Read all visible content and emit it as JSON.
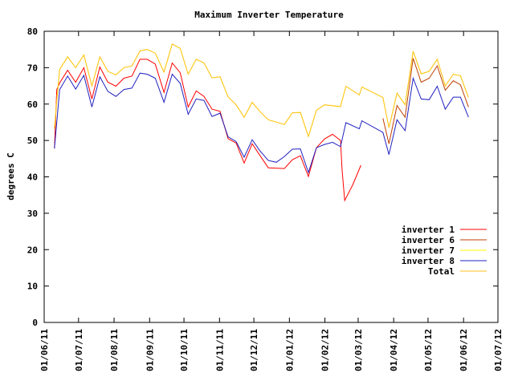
{
  "chart_data": {
    "type": "line",
    "title": "Maximum Inverter Temperature",
    "xlabel": "",
    "ylabel": "degrees C",
    "x_units": "days since 01/06/11",
    "xlim": [
      0,
      396
    ],
    "ylim": [
      0,
      80
    ],
    "yticks": [
      0,
      10,
      20,
      30,
      40,
      50,
      60,
      70,
      80
    ],
    "xticks": [
      {
        "day": 0,
        "label": "01/06/11"
      },
      {
        "day": 30,
        "label": "01/07/11"
      },
      {
        "day": 61,
        "label": "01/08/11"
      },
      {
        "day": 92,
        "label": "01/09/11"
      },
      {
        "day": 122,
        "label": "01/10/11"
      },
      {
        "day": 153,
        "label": "01/11/11"
      },
      {
        "day": 183,
        "label": "01/12/11"
      },
      {
        "day": 214,
        "label": "01/01/12"
      },
      {
        "day": 245,
        "label": "01/02/12"
      },
      {
        "day": 274,
        "label": "01/03/12"
      },
      {
        "day": 305,
        "label": "01/04/12"
      },
      {
        "day": 335,
        "label": "01/05/12"
      },
      {
        "day": 366,
        "label": "01/06/12"
      },
      {
        "day": 396,
        "label": "01/07/12"
      }
    ],
    "legend_position": "bottom-right",
    "series": [
      {
        "name": "inverter 1",
        "color": "#ff0000",
        "segments": [
          [
            [
              9,
              47.8
            ],
            [
              11,
              64
            ],
            [
              13.5,
              65.8
            ],
            [
              20.5,
              69.3
            ],
            [
              27.5,
              66
            ],
            [
              34.6,
              70
            ],
            [
              41.6,
              61.4
            ],
            [
              48.6,
              70.2
            ],
            [
              55.6,
              66
            ],
            [
              62.6,
              64.9
            ],
            [
              69.6,
              67.1
            ],
            [
              76.6,
              67.7
            ],
            [
              83.6,
              72.3
            ],
            [
              89.9,
              72.3
            ],
            [
              96.9,
              71
            ],
            [
              104.6,
              63.2
            ],
            [
              111.7,
              71.3
            ],
            [
              118.7,
              68.6
            ],
            [
              125.7,
              59.2
            ],
            [
              132.7,
              63.6
            ],
            [
              139.5,
              62.1
            ],
            [
              146.5,
              58.6
            ],
            [
              153.5,
              58
            ],
            [
              160.5,
              50.5
            ],
            [
              167.5,
              49.3
            ],
            [
              174.5,
              43.8
            ],
            [
              181.5,
              49.1
            ],
            [
              188.5,
              45.8
            ],
            [
              195.6,
              42.5
            ],
            [
              209.6,
              42.3
            ],
            [
              216.6,
              44.7
            ],
            [
              223.6,
              45.8
            ],
            [
              230.6,
              40.1
            ],
            [
              237.6,
              48
            ],
            [
              244.6,
              50.4
            ],
            [
              251.6,
              51.7
            ],
            [
              258.6,
              50
            ],
            [
              260,
              41.7
            ],
            [
              262.3,
              33.5
            ],
            [
              269.4,
              37.9
            ],
            [
              276.4,
              43.2
            ]
          ]
        ]
      },
      {
        "name": "inverter 6",
        "color": "#c04000",
        "segments": [
          [
            [
              295.6,
              56.1
            ],
            [
              300.9,
              49.1
            ],
            [
              307.9,
              59.6
            ],
            [
              315,
              56.4
            ],
            [
              322,
              72.6
            ],
            [
              329,
              66
            ],
            [
              336,
              67.1
            ],
            [
              343,
              70.5
            ],
            [
              350,
              63.8
            ],
            [
              357,
              66.4
            ],
            [
              363.3,
              65.3
            ],
            [
              370.3,
              59.2
            ]
          ]
        ]
      },
      {
        "name": "inverter 7",
        "color": "#ffff00",
        "segments": [
          [
            [
              9,
              53.3
            ],
            [
              11,
              61
            ],
            [
              13.5,
              69.5
            ],
            [
              20.5,
              73
            ],
            [
              27.5,
              70
            ],
            [
              34.6,
              73.5
            ],
            [
              41.6,
              65
            ],
            [
              48.6,
              73
            ],
            [
              55.6,
              69
            ],
            [
              62.6,
              68
            ],
            [
              69.6,
              70
            ],
            [
              76.6,
              70.5
            ],
            [
              83.6,
              74.6
            ],
            [
              89.9,
              75
            ],
            [
              96.9,
              74
            ],
            [
              104.6,
              68.8
            ],
            [
              111.7,
              76.5
            ],
            [
              118.7,
              75.3
            ],
            [
              125.7,
              68.2
            ],
            [
              132.7,
              72.3
            ],
            [
              139.5,
              71.3
            ],
            [
              146.5,
              67.2
            ],
            [
              153.5,
              67.5
            ],
            [
              160.5,
              62
            ],
            [
              167.5,
              59.8
            ],
            [
              174.5,
              56.4
            ],
            [
              181.5,
              60.5
            ],
            [
              188.5,
              57.9
            ],
            [
              195.6,
              55.7
            ],
            [
              209.6,
              54.4
            ],
            [
              216.6,
              57.6
            ],
            [
              223.6,
              57.7
            ],
            [
              230.6,
              51.1
            ],
            [
              237.6,
              58.3
            ],
            [
              244.6,
              59.8
            ],
            [
              258.6,
              59.3
            ],
            [
              263.3,
              64.9
            ],
            [
              275,
              62.5
            ],
            [
              277.3,
              64.7
            ],
            [
              295.6,
              61.8
            ],
            [
              300.9,
              53.5
            ],
            [
              307.9,
              63
            ],
            [
              315,
              59.8
            ],
            [
              322,
              74.5
            ],
            [
              329,
              68.3
            ],
            [
              336,
              69
            ],
            [
              343,
              72.3
            ],
            [
              350,
              65
            ],
            [
              357,
              68.2
            ],
            [
              363.3,
              67.8
            ],
            [
              370.3,
              61.8
            ]
          ]
        ]
      },
      {
        "name": "inverter 8",
        "color": "#2020c0",
        "segments": [
          [
            [
              9,
              47.8
            ],
            [
              13.5,
              64
            ],
            [
              20.5,
              67.7
            ],
            [
              27.5,
              64.1
            ],
            [
              34.6,
              67.9
            ],
            [
              41.6,
              59.2
            ],
            [
              48.6,
              67.5
            ],
            [
              55.6,
              63.5
            ],
            [
              62.6,
              62.1
            ],
            [
              69.6,
              64
            ],
            [
              76.6,
              64.4
            ],
            [
              83.6,
              68.5
            ],
            [
              89.9,
              68.2
            ],
            [
              96.9,
              67.1
            ],
            [
              104.6,
              60.5
            ],
            [
              111.7,
              68.2
            ],
            [
              118.7,
              65.7
            ],
            [
              125.7,
              57.2
            ],
            [
              132.7,
              61.4
            ],
            [
              139.5,
              61
            ],
            [
              146.5,
              56.6
            ],
            [
              153.5,
              57.5
            ],
            [
              160.5,
              51
            ],
            [
              167.5,
              49.7
            ],
            [
              174.5,
              45.4
            ],
            [
              181.5,
              50.2
            ],
            [
              188.5,
              47.1
            ],
            [
              195.6,
              44.5
            ],
            [
              202.6,
              44
            ],
            [
              209.6,
              45.6
            ],
            [
              216.6,
              47.6
            ],
            [
              223.6,
              47.7
            ],
            [
              230.6,
              41.2
            ],
            [
              237.6,
              48
            ],
            [
              244.6,
              48.9
            ],
            [
              251.6,
              49.5
            ],
            [
              258.6,
              48.3
            ],
            [
              263.3,
              54.9
            ],
            [
              275,
              53.2
            ],
            [
              277.3,
              55.4
            ],
            [
              295.6,
              52.2
            ],
            [
              300.9,
              46.1
            ],
            [
              307.9,
              55.7
            ],
            [
              315,
              52.7
            ],
            [
              322,
              67.1
            ],
            [
              329,
              61.4
            ],
            [
              336,
              61.2
            ],
            [
              343,
              64.9
            ],
            [
              350,
              58.6
            ],
            [
              357,
              61.9
            ],
            [
              363.3,
              61.9
            ],
            [
              370.3,
              56.4
            ]
          ]
        ]
      },
      {
        "name": "Total",
        "color": "#ffc020",
        "segments": [
          [
            [
              9,
              53.3
            ],
            [
              11,
              61
            ],
            [
              13.5,
              69.5
            ],
            [
              20.5,
              73
            ],
            [
              27.5,
              70
            ],
            [
              34.6,
              73.5
            ],
            [
              41.6,
              65
            ],
            [
              48.6,
              73
            ],
            [
              55.6,
              69
            ],
            [
              62.6,
              68
            ],
            [
              69.6,
              70
            ],
            [
              76.6,
              70.5
            ],
            [
              83.6,
              74.6
            ],
            [
              89.9,
              75
            ],
            [
              96.9,
              74
            ],
            [
              104.6,
              68.8
            ],
            [
              111.7,
              76.5
            ],
            [
              118.7,
              75.3
            ],
            [
              125.7,
              68.2
            ],
            [
              132.7,
              72.3
            ],
            [
              139.5,
              71.3
            ],
            [
              146.5,
              67.2
            ],
            [
              153.5,
              67.5
            ],
            [
              160.5,
              62
            ],
            [
              167.5,
              59.8
            ],
            [
              174.5,
              56.4
            ],
            [
              181.5,
              60.5
            ],
            [
              188.5,
              57.9
            ],
            [
              195.6,
              55.7
            ],
            [
              209.6,
              54.4
            ],
            [
              216.6,
              57.6
            ],
            [
              223.6,
              57.7
            ],
            [
              230.6,
              51.1
            ],
            [
              237.6,
              58.3
            ],
            [
              244.6,
              59.8
            ],
            [
              258.6,
              59.3
            ],
            [
              263.3,
              64.9
            ],
            [
              275,
              62.5
            ],
            [
              277.3,
              64.7
            ],
            [
              295.6,
              61.8
            ],
            [
              300.9,
              53.5
            ],
            [
              307.9,
              63
            ],
            [
              315,
              59.8
            ],
            [
              322,
              74.5
            ],
            [
              329,
              68.3
            ],
            [
              336,
              69
            ],
            [
              343,
              72.3
            ],
            [
              350,
              65
            ],
            [
              357,
              68.2
            ],
            [
              363.3,
              67.8
            ],
            [
              370.3,
              61.8
            ]
          ]
        ]
      }
    ]
  }
}
